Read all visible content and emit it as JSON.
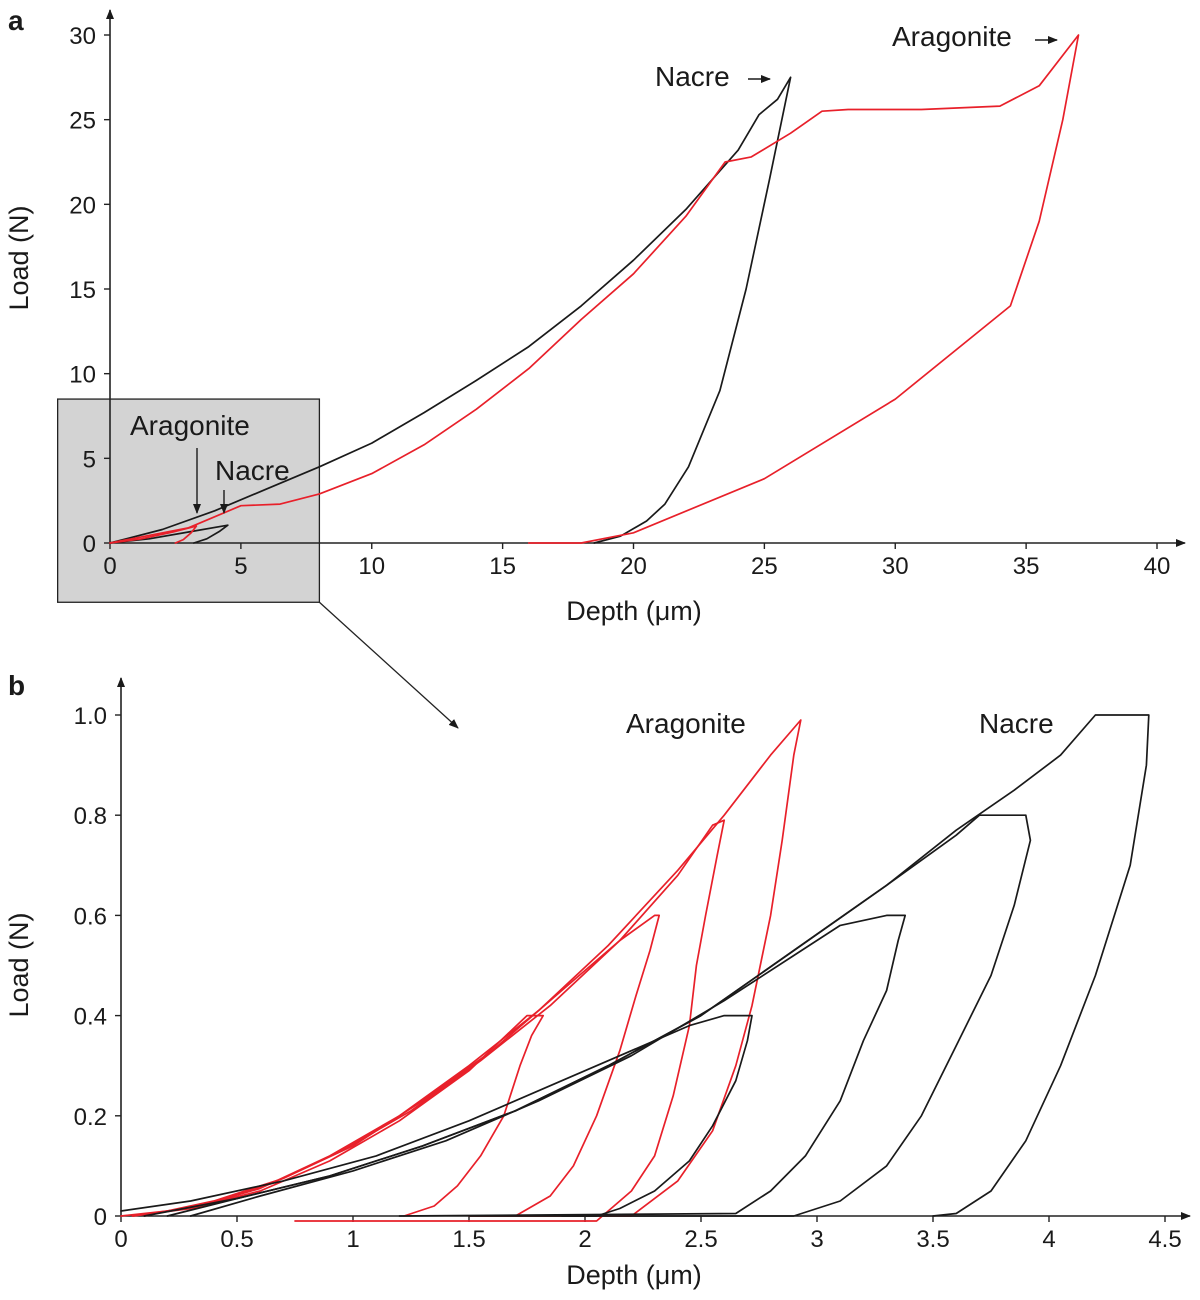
{
  "colors": {
    "aragonite": "#e8202a",
    "nacre": "#1a1a1a",
    "inset": "#d3d3d3"
  },
  "chart_data": [
    {
      "panel": "a",
      "type": "line",
      "xlabel": "Depth (μm)",
      "ylabel": "Load (N)",
      "xlim": [
        0,
        40
      ],
      "ylim": [
        0,
        30
      ],
      "xticks": [
        "0",
        "5",
        "10",
        "15",
        "20",
        "25",
        "30",
        "35",
        "40"
      ],
      "yticks": [
        "0",
        "5",
        "10",
        "15",
        "20",
        "25",
        "30"
      ],
      "annotations": [
        "Nacre",
        "Aragonite",
        "Aragonite",
        "Nacre"
      ],
      "inset_region": {
        "x": [
          -2,
          8
        ],
        "y": [
          -3.5,
          8.5
        ]
      },
      "series": [
        {
          "name": "Nacre",
          "color": "#1a1a1a",
          "segments": [
            {
              "x": [
                0,
                2,
                4,
                6,
                8,
                10,
                12,
                14,
                16,
                18,
                20,
                22,
                24,
                24.8,
                25.5,
                26,
                25.2,
                24.3,
                23.3,
                22.1,
                21.2,
                20.5,
                19.5,
                18.5
              ],
              "y": [
                0,
                0.8,
                1.9,
                3.2,
                4.5,
                5.9,
                7.7,
                9.6,
                11.6,
                14.0,
                16.7,
                19.7,
                23.2,
                25.3,
                26.2,
                27.5,
                21.5,
                15.0,
                9.0,
                4.5,
                2.3,
                1.3,
                0.4,
                0
              ]
            }
          ]
        },
        {
          "name": "Aragonite",
          "color": "#e8202a",
          "segments": [
            {
              "x": [
                0,
                3,
                5,
                6.5,
                8,
                10,
                12,
                14,
                16,
                18,
                20,
                22,
                23.5,
                24.5,
                26,
                27.2,
                28.2,
                31,
                34,
                35.5,
                37,
                36.4,
                35.5,
                34.4,
                30,
                25,
                20,
                18,
                16
              ],
              "y": [
                0,
                0.9,
                2.2,
                2.3,
                2.9,
                4.1,
                5.8,
                7.9,
                10.3,
                13.2,
                15.9,
                19.3,
                22.5,
                22.8,
                24.2,
                25.5,
                25.6,
                25.6,
                25.8,
                27.0,
                30.0,
                25.0,
                19.0,
                14.0,
                8.5,
                3.8,
                0.6,
                0,
                0
              ]
            }
          ]
        }
      ]
    },
    {
      "panel": "b",
      "type": "line",
      "xlabel": "Depth (μm)",
      "ylabel": "Load (N)",
      "xlim": [
        0,
        4.5
      ],
      "ylim": [
        0,
        1.0
      ],
      "xticks": [
        "0",
        "0.5",
        "1",
        "1.5",
        "2",
        "2.5",
        "3",
        "3.5",
        "4",
        "4.5"
      ],
      "yticks": [
        "0",
        "0.2",
        "0.4",
        "0.6",
        "0.8",
        "1.0"
      ],
      "annotations": [
        "Aragonite",
        "Nacre"
      ],
      "series": [
        {
          "name": "Aragonite",
          "color": "#e8202a",
          "segments": [
            {
              "x": [
                0.05,
                0.3,
                0.6,
                0.9,
                1.2,
                1.5,
                1.75,
                1.82,
                1.77,
                1.72,
                1.65,
                1.55,
                1.45,
                1.35,
                1.22
              ],
              "y": [
                0,
                0.015,
                0.05,
                0.11,
                0.19,
                0.29,
                0.4,
                0.4,
                0.36,
                0.3,
                0.2,
                0.12,
                0.06,
                0.02,
                0
              ]
            },
            {
              "x": [
                0.1,
                0.4,
                0.7,
                1.0,
                1.3,
                1.6,
                1.9,
                2.15,
                2.3,
                2.32,
                2.28,
                2.22,
                2.15,
                2.05,
                1.95,
                1.85,
                1.7
              ],
              "y": [
                0,
                0.03,
                0.075,
                0.14,
                0.23,
                0.33,
                0.45,
                0.55,
                0.6,
                0.6,
                0.53,
                0.44,
                0.33,
                0.2,
                0.1,
                0.04,
                0
              ]
            },
            {
              "x": [
                0.05,
                0.35,
                0.65,
                0.95,
                1.25,
                1.55,
                1.85,
                2.15,
                2.4,
                2.55,
                2.6,
                2.57,
                2.52,
                2.48,
                2.45,
                2.38,
                2.3,
                2.2,
                2.05,
                0.75
              ],
              "y": [
                0,
                0.02,
                0.065,
                0.13,
                0.21,
                0.31,
                0.42,
                0.55,
                0.68,
                0.78,
                0.79,
                0.72,
                0.6,
                0.5,
                0.38,
                0.24,
                0.12,
                0.05,
                -0.01,
                -0.01
              ]
            },
            {
              "x": [
                0,
                0.3,
                0.6,
                0.9,
                1.2,
                1.5,
                1.8,
                2.1,
                2.4,
                2.6,
                2.8,
                2.93,
                2.9,
                2.85,
                2.8,
                2.72,
                2.65,
                2.55,
                2.4,
                2.2,
                1.5
              ],
              "y": [
                0,
                0.015,
                0.055,
                0.12,
                0.2,
                0.3,
                0.41,
                0.54,
                0.69,
                0.8,
                0.92,
                0.99,
                0.92,
                0.75,
                0.6,
                0.42,
                0.3,
                0.17,
                0.07,
                0,
                0
              ]
            }
          ]
        },
        {
          "name": "Nacre",
          "color": "#1a1a1a",
          "segments": [
            {
              "x": [
                0,
                0.3,
                0.7,
                1.1,
                1.5,
                1.9,
                2.2,
                2.45,
                2.6,
                2.72,
                2.7,
                2.65,
                2.55,
                2.45,
                2.3,
                2.15,
                2.05,
                1.9
              ],
              "y": [
                0.01,
                0.03,
                0.07,
                0.12,
                0.19,
                0.27,
                0.33,
                0.38,
                0.4,
                0.4,
                0.35,
                0.27,
                0.18,
                0.11,
                0.05,
                0.015,
                0,
                0
              ]
            },
            {
              "x": [
                0.3,
                0.6,
                1.0,
                1.4,
                1.8,
                2.2,
                2.6,
                2.9,
                3.1,
                3.3,
                3.38,
                3.35,
                3.3,
                3.2,
                3.1,
                2.95,
                2.8,
                2.65,
                1.2
              ],
              "y": [
                0,
                0.04,
                0.09,
                0.15,
                0.23,
                0.32,
                0.43,
                0.52,
                0.58,
                0.6,
                0.6,
                0.55,
                0.45,
                0.35,
                0.23,
                0.12,
                0.05,
                0.005,
                0
              ]
            },
            {
              "x": [
                0.2,
                0.5,
                0.9,
                1.3,
                1.7,
                2.1,
                2.5,
                2.9,
                3.3,
                3.6,
                3.7,
                3.9,
                3.92,
                3.85,
                3.75,
                3.6,
                3.45,
                3.3,
                3.1,
                2.9,
                1.5
              ],
              "y": [
                0,
                0.035,
                0.08,
                0.14,
                0.21,
                0.3,
                0.4,
                0.53,
                0.66,
                0.76,
                0.8,
                0.8,
                0.75,
                0.62,
                0.48,
                0.34,
                0.2,
                0.1,
                0.03,
                0,
                0
              ]
            },
            {
              "x": [
                0.1,
                0.5,
                0.9,
                1.3,
                1.7,
                2.1,
                2.5,
                2.9,
                3.3,
                3.6,
                3.85,
                4.05,
                4.2,
                4.43,
                4.42,
                4.35,
                4.2,
                4.05,
                3.9,
                3.75,
                3.6,
                3.5
              ],
              "y": [
                0,
                0.035,
                0.08,
                0.14,
                0.21,
                0.3,
                0.4,
                0.53,
                0.66,
                0.77,
                0.85,
                0.92,
                1.0,
                1.0,
                0.9,
                0.7,
                0.48,
                0.3,
                0.15,
                0.05,
                0.005,
                0
              ]
            }
          ]
        }
      ]
    }
  ]
}
